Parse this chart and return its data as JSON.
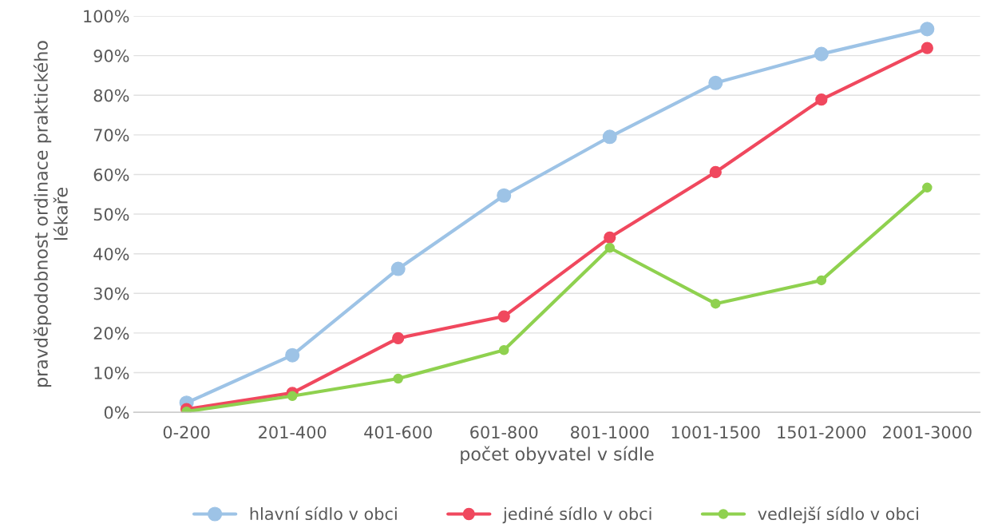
{
  "chart_data": {
    "type": "line",
    "xlabel": "počet obyvatel v sídle",
    "ylabel": "pravděpodobnost ordinace praktického\nlékaře",
    "categories": [
      "0-200",
      "201-400",
      "401-600",
      "601-800",
      "801-1000",
      "1001-1500",
      "1501-2000",
      "2001-3000"
    ],
    "series": [
      {
        "name": "hlavní sídlo v obci",
        "color": "#9dc3e6",
        "values": [
          2.4,
          14.4,
          36.2,
          54.7,
          69.5,
          83.1,
          90.4,
          96.7
        ]
      },
      {
        "name": "jediné sídlo v obci",
        "color": "#f0485e",
        "values": [
          0.8,
          4.9,
          18.7,
          24.2,
          44.1,
          60.6,
          78.9,
          91.9
        ]
      },
      {
        "name": "vedlejší sídlo v obci",
        "color": "#8fd14f",
        "values": [
          0.2,
          4.1,
          8.5,
          15.7,
          41.5,
          27.4,
          33.3,
          56.7
        ]
      }
    ],
    "ylim": [
      0,
      100
    ],
    "yticks": [
      {
        "value": 0,
        "label": "0%"
      },
      {
        "value": 10,
        "label": "10%"
      },
      {
        "value": 20,
        "label": "20%"
      },
      {
        "value": 30,
        "label": "30%"
      },
      {
        "value": 40,
        "label": "40%"
      },
      {
        "value": 50,
        "label": "50%"
      },
      {
        "value": 60,
        "label": "60%"
      },
      {
        "value": 70,
        "label": "70%"
      },
      {
        "value": 80,
        "label": "80%"
      },
      {
        "value": 90,
        "label": "90%"
      },
      {
        "value": 100,
        "label": "100%"
      }
    ],
    "grid": "y",
    "legend": "bottom",
    "marker": "circle",
    "line_style": "solid"
  }
}
